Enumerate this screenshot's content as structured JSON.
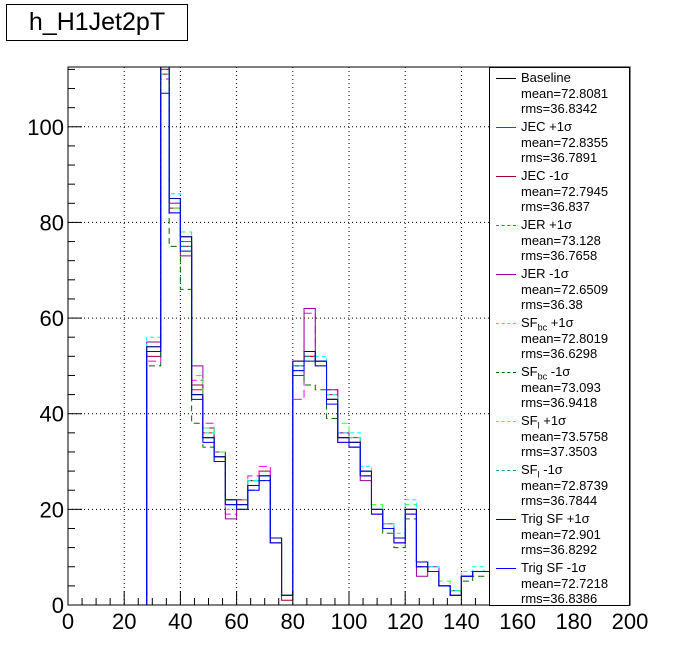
{
  "title": "h_H1Jet2pT",
  "chart_data": {
    "type": "line",
    "style": "step-histogram",
    "xlim": [
      0,
      200
    ],
    "ylim": [
      0,
      112.5
    ],
    "x_ticks": [
      0,
      20,
      40,
      60,
      80,
      100,
      120,
      140,
      160,
      180,
      200
    ],
    "y_ticks": [
      0,
      20,
      40,
      60,
      80,
      100
    ],
    "grid": true,
    "legend_position": "right",
    "bin_edges": [
      0,
      5,
      10,
      15,
      20,
      25,
      28,
      33,
      36,
      40,
      44,
      48,
      52,
      56,
      60,
      64,
      68,
      72,
      76,
      80,
      84,
      88,
      92,
      96,
      100,
      104,
      108,
      112,
      116,
      120,
      124,
      128,
      132,
      136,
      140,
      144,
      148,
      150
    ],
    "series": [
      {
        "name": "Baseline",
        "color": "#000000",
        "dash": "",
        "mean": "mean=72.8081",
        "rms": "rms=36.8342",
        "values": [
          0,
          0,
          0,
          0,
          0,
          0,
          53,
          113,
          85,
          77,
          44,
          35,
          31,
          22,
          21,
          25,
          27,
          14,
          2,
          50,
          52,
          51,
          43,
          35,
          34,
          28,
          20,
          16,
          14,
          20,
          9,
          7,
          4,
          2,
          6,
          7,
          7
        ]
      },
      {
        "name": "JEC +1σ",
        "color": "#ff0000",
        "dash": "",
        "mean": "mean=72.8355",
        "rms": "rms=36.7891",
        "values": [
          0,
          0,
          0,
          0,
          0,
          0,
          54,
          112,
          84,
          76,
          45,
          36,
          31,
          21,
          22,
          26,
          27,
          13,
          2,
          51,
          52,
          50,
          44,
          34,
          35,
          27,
          19,
          17,
          13,
          19,
          8,
          7,
          4,
          2,
          6,
          7,
          7
        ]
      },
      {
        "name": "JEC -1σ",
        "color": "#990033",
        "dash": "",
        "mean": "mean=72.7945",
        "rms": "rms=36.837",
        "values": [
          0,
          0,
          0,
          0,
          0,
          0,
          52,
          111,
          83,
          75,
          46,
          37,
          32,
          21,
          20,
          26,
          28,
          13,
          1,
          50,
          53,
          51,
          43,
          35,
          34,
          28,
          20,
          16,
          14,
          20,
          9,
          7,
          4,
          3,
          6,
          7,
          7
        ]
      },
      {
        "name": "JER +1σ",
        "color": "#ff00ff",
        "dash": "8,4",
        "mean": "mean=73.128",
        "rms": "rms=36.7658",
        "values": [
          0,
          0,
          0,
          0,
          0,
          0,
          51,
          110,
          84,
          76,
          47,
          38,
          30,
          19,
          21,
          27,
          29,
          14,
          2,
          43,
          61,
          51,
          45,
          36,
          33,
          28,
          20,
          17,
          13,
          20,
          8,
          7,
          4,
          2,
          6,
          7,
          7
        ]
      },
      {
        "name": "JER -1σ",
        "color": "#990099",
        "dash": "",
        "mean": "mean=72.6509",
        "rms": "rms=36.38",
        "values": [
          0,
          0,
          0,
          0,
          0,
          0,
          55,
          112,
          82,
          73,
          50,
          35,
          32,
          18,
          22,
          25,
          27,
          14,
          2,
          48,
          62,
          51,
          45,
          36,
          33,
          26,
          19,
          16,
          13,
          20,
          6,
          8,
          4,
          3,
          6,
          7,
          7
        ]
      },
      {
        "name": "SF",
        "sub": "bc",
        "suffix": " +1σ",
        "color": "#33ff33",
        "dash": "6,4",
        "mean": "mean=72.8019",
        "rms": "rms=36.6298",
        "values": [
          0,
          0,
          0,
          0,
          0,
          0,
          54,
          111,
          83,
          78,
          48,
          37,
          32,
          22,
          22,
          26,
          27,
          14,
          2,
          49,
          51,
          50,
          43,
          38,
          35,
          28,
          21,
          17,
          14,
          21,
          9,
          7,
          5,
          3,
          6,
          7,
          7
        ]
      },
      {
        "name": "SF",
        "sub": "bc",
        "suffix": " -1σ",
        "color": "#006600",
        "dash": "6,4",
        "mean": "mean=73.093",
        "rms": "rms=36.9418",
        "values": [
          0,
          0,
          0,
          0,
          0,
          0,
          50,
          113,
          75,
          66,
          38,
          33,
          31,
          21,
          20,
          24,
          26,
          13,
          2,
          49,
          46,
          45,
          39,
          35,
          33,
          27,
          20,
          15,
          12,
          18,
          8,
          7,
          4,
          2,
          5,
          6,
          7
        ]
      },
      {
        "name": "SF",
        "sub": "l",
        "suffix": " +1σ",
        "color": "#00ffff",
        "dash": "4,3",
        "mean": "mean=73.5758",
        "rms": "rms=37.3503",
        "values": [
          0,
          0,
          0,
          0,
          0,
          0,
          56,
          112,
          86,
          74,
          44,
          36,
          30,
          20,
          21,
          26,
          27,
          14,
          2,
          50,
          53,
          52,
          44,
          36,
          36,
          29,
          20,
          17,
          15,
          22,
          9,
          8,
          4,
          3,
          7,
          8,
          7
        ]
      },
      {
        "name": "SF",
        "sub": "l",
        "suffix": " -1σ",
        "color": "#009999",
        "dash": "4,3",
        "mean": "mean=72.8739",
        "rms": "rms=36.7844",
        "values": [
          0,
          0,
          0,
          0,
          0,
          0,
          53,
          112,
          84,
          75,
          44,
          35,
          31,
          22,
          21,
          25,
          27,
          14,
          2,
          50,
          52,
          51,
          43,
          35,
          34,
          28,
          20,
          16,
          14,
          20,
          9,
          7,
          4,
          2,
          6,
          7,
          7
        ]
      },
      {
        "name": "Trig SF +1σ",
        "color": "#000099",
        "dash": "",
        "mean": "mean=72.901",
        "rms": "rms=36.8292",
        "values": [
          0,
          0,
          0,
          0,
          0,
          0,
          54,
          113,
          85,
          77,
          44,
          35,
          31,
          22,
          21,
          25,
          27,
          14,
          2,
          51,
          53,
          51,
          43,
          35,
          34,
          28,
          20,
          16,
          14,
          20,
          9,
          7,
          4,
          2,
          6,
          7,
          7
        ]
      },
      {
        "name": "Trig SF -1σ",
        "color": "#0000ff",
        "dash": "",
        "mean": "mean=72.7218",
        "rms": "rms=36.8386",
        "values": [
          0,
          0,
          0,
          0,
          0,
          0,
          53,
          107,
          82,
          74,
          43,
          34,
          30,
          21,
          20,
          24,
          26,
          13,
          2,
          49,
          51,
          50,
          42,
          34,
          33,
          27,
          19,
          16,
          13,
          19,
          8,
          7,
          4,
          2,
          6,
          7,
          7
        ]
      }
    ]
  }
}
